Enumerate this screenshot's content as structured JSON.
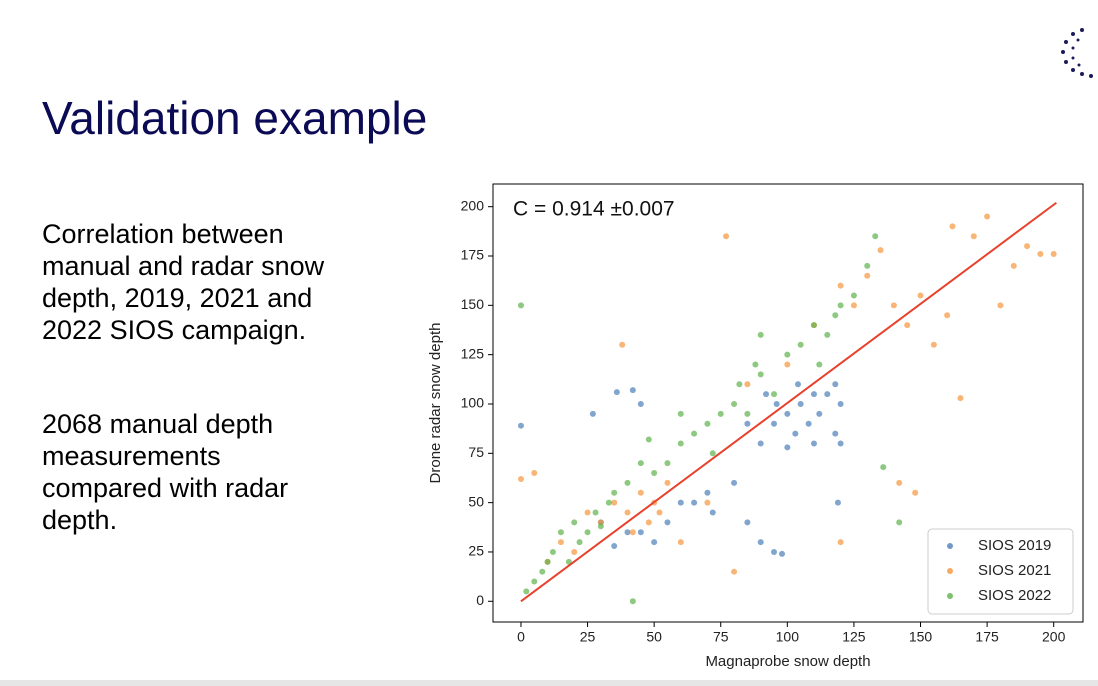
{
  "header": {
    "title": "Validation example"
  },
  "body": {
    "paragraphs": [
      {
        "lines": [
          "Correlation between",
          "manual and radar snow",
          "depth, 2019, 2021 and",
          "2022 SIOS campaign."
        ]
      },
      {
        "lines": [
          "2068 manual depth",
          "measurements",
          "compared with radar",
          "depth."
        ]
      }
    ]
  },
  "chart_data": {
    "type": "scatter",
    "annotation": "C = 0.914 ±0.007",
    "x_label": "Magnaprobe snow depth",
    "y_label": "Drone radar snow depth",
    "xlim": [
      -10.5,
      211
    ],
    "ylim": [
      -10.5,
      211.5
    ],
    "xticks": [
      0,
      25,
      50,
      75,
      100,
      125,
      150,
      175,
      200
    ],
    "yticks": [
      0,
      25,
      50,
      75,
      100,
      125,
      150,
      175,
      200
    ],
    "legend": "lower right",
    "series": [
      {
        "name": "SIOS 2019",
        "color": "#4c7fb8",
        "x": [
          0,
          27,
          36,
          42,
          45,
          60,
          55,
          50,
          45,
          65,
          70,
          72,
          80,
          85,
          90,
          95,
          98,
          90,
          95,
          100,
          103,
          105,
          108,
          110,
          112,
          115,
          118,
          120,
          120,
          118,
          110,
          100,
          104,
          96,
          119,
          30,
          35,
          40,
          85,
          92
        ],
        "y": [
          89,
          95,
          106,
          107,
          100,
          50,
          40,
          30,
          35,
          50,
          55,
          45,
          60,
          40,
          30,
          25,
          24,
          80,
          90,
          95,
          85,
          100,
          90,
          80,
          95,
          105,
          85,
          100,
          80,
          110,
          105,
          78,
          110,
          100,
          50,
          40,
          28,
          35,
          90,
          105
        ]
      },
      {
        "name": "SIOS 2021",
        "color": "#f5963a",
        "x": [
          0,
          5,
          10,
          15,
          20,
          25,
          30,
          35,
          40,
          42,
          45,
          48,
          50,
          52,
          55,
          38,
          77,
          60,
          80,
          85,
          100,
          110,
          120,
          125,
          130,
          135,
          140,
          145,
          150,
          155,
          160,
          162,
          165,
          170,
          175,
          180,
          185,
          190,
          195,
          200,
          142,
          148,
          120,
          70
        ],
        "y": [
          62,
          65,
          20,
          30,
          25,
          45,
          40,
          50,
          45,
          35,
          55,
          40,
          50,
          45,
          60,
          130,
          185,
          30,
          15,
          110,
          120,
          140,
          160,
          150,
          165,
          178,
          150,
          140,
          155,
          130,
          145,
          190,
          103,
          185,
          195,
          150,
          170,
          180,
          176,
          176,
          60,
          55,
          30,
          50
        ]
      },
      {
        "name": "SIOS 2022",
        "color": "#5cb24a",
        "x": [
          0,
          2,
          5,
          8,
          10,
          12,
          15,
          18,
          20,
          22,
          25,
          28,
          30,
          33,
          35,
          40,
          42,
          45,
          50,
          55,
          60,
          65,
          70,
          72,
          75,
          80,
          82,
          85,
          88,
          90,
          95,
          100,
          105,
          110,
          112,
          115,
          118,
          120,
          125,
          130,
          133,
          136,
          142,
          90,
          60,
          48
        ],
        "y": [
          150,
          5,
          10,
          15,
          20,
          25,
          35,
          20,
          40,
          30,
          35,
          45,
          38,
          50,
          55,
          60,
          0,
          70,
          65,
          70,
          80,
          85,
          90,
          75,
          95,
          100,
          110,
          95,
          120,
          115,
          105,
          125,
          130,
          140,
          120,
          135,
          145,
          150,
          155,
          170,
          185,
          68,
          40,
          135,
          95,
          82
        ]
      }
    ],
    "fit_line": {
      "color": "#e8412c",
      "x": [
        0,
        201
      ],
      "y": [
        0,
        202
      ]
    }
  }
}
